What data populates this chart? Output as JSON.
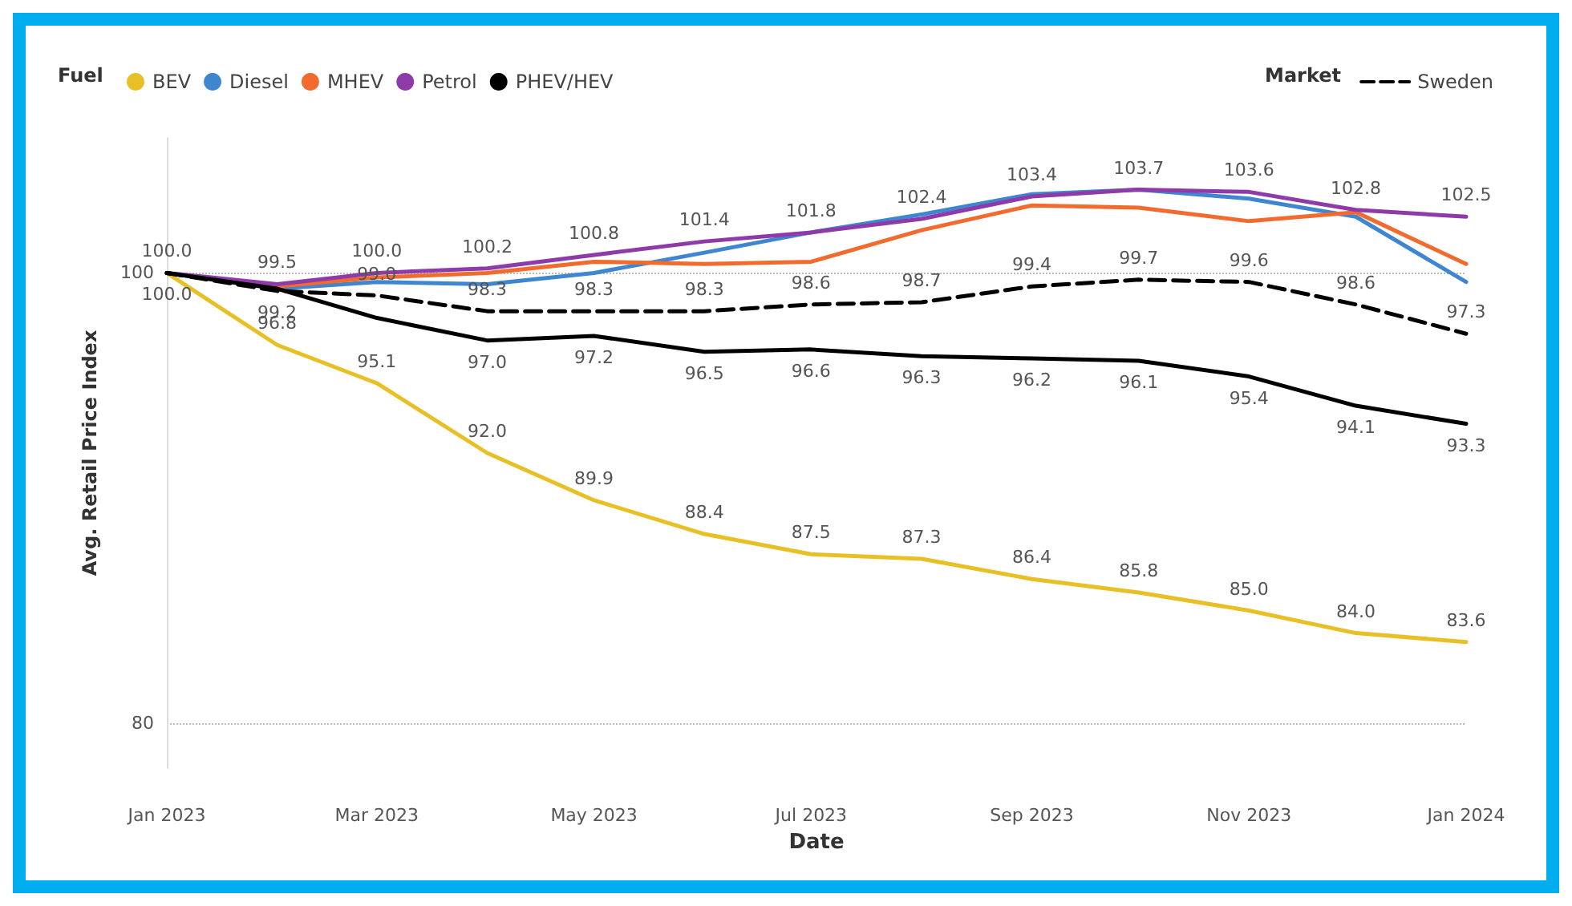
{
  "chart_data": {
    "type": "line",
    "xlabel": "Date",
    "ylabel": "Avg. Retail Price Index",
    "legend_title": "Fuel",
    "annotations": [
      "Market"
    ],
    "x": [
      "2023-01",
      "2023-02",
      "2023-03",
      "2023-04",
      "2023-05",
      "2023-06",
      "2023-07",
      "2023-08",
      "2023-09",
      "2023-10",
      "2023-11",
      "2023-12",
      "2024-01"
    ],
    "xlim": [
      "2023-01",
      "2024-01"
    ],
    "xticks": [
      {
        "value": "2023-01",
        "label": "Jan 2023"
      },
      {
        "value": "2023-03",
        "label": "Mar 2023"
      },
      {
        "value": "2023-05",
        "label": "May 2023"
      },
      {
        "value": "2023-07",
        "label": "Jul 2023"
      },
      {
        "value": "2023-09",
        "label": "Sep 2023"
      },
      {
        "value": "2023-11",
        "label": "Nov 2023"
      },
      {
        "value": "2024-01",
        "label": "Jan 2024"
      }
    ],
    "ylim": [
      78,
      106
    ],
    "yticks": [
      80,
      100
    ],
    "grid": "y",
    "legend": "top",
    "marker": "none",
    "series": [
      {
        "name": "BEV",
        "color": "#e8c026",
        "values": [
          100.0,
          96.8,
          95.1,
          92.0,
          89.9,
          88.4,
          87.5,
          87.3,
          86.4,
          85.8,
          85.0,
          84.0,
          83.6
        ],
        "value_labels": [
          null,
          "96.8",
          "95.1",
          "92.0",
          "89.9",
          "88.4",
          "87.5",
          "87.3",
          "86.4",
          "85.8",
          "85.0",
          "84.0",
          "83.6"
        ]
      },
      {
        "name": "Diesel",
        "color": "#3f86d0",
        "values": [
          100.0,
          99.3,
          99.6,
          99.5,
          100.0,
          100.9,
          101.8,
          102.6,
          103.5,
          103.7,
          103.3,
          102.5,
          99.6
        ]
      },
      {
        "name": "MHEV",
        "color": "#f26b2e",
        "values": [
          100.0,
          99.4,
          99.8,
          100.0,
          100.5,
          100.4,
          100.5,
          101.9,
          103.0,
          102.9,
          102.3,
          102.7,
          100.4
        ]
      },
      {
        "name": "Petrol",
        "color": "#8e3aa8",
        "values": [
          100.0,
          99.5,
          100.0,
          100.2,
          100.8,
          101.4,
          101.8,
          102.4,
          103.4,
          103.7,
          103.6,
          102.8,
          102.5
        ],
        "value_labels": [
          "100.0",
          "99.5",
          "100.0",
          "100.2",
          "100.8",
          "101.4",
          "101.8",
          "102.4",
          "103.4",
          "103.7",
          "103.6",
          "102.8",
          "102.5"
        ]
      },
      {
        "name": "PHEV/HEV",
        "color": "#000000",
        "values": [
          100.0,
          99.3,
          98.0,
          97.0,
          97.2,
          96.5,
          96.6,
          96.3,
          96.2,
          96.1,
          95.4,
          94.1,
          93.3
        ],
        "value_labels": [
          "100.0",
          null,
          null,
          "97.0",
          "97.2",
          "96.5",
          "96.6",
          "96.3",
          "96.2",
          "96.1",
          "95.4",
          "94.1",
          "93.3"
        ]
      },
      {
        "name": "Sweden",
        "color": "#000000",
        "line_style": "dashed",
        "values": [
          100.0,
          99.2,
          99.0,
          98.3,
          98.3,
          98.3,
          98.6,
          98.7,
          99.4,
          99.7,
          99.6,
          98.6,
          97.3
        ],
        "value_labels": [
          null,
          "99.2",
          "99.0",
          "98.3",
          "98.3",
          "98.3",
          "98.6",
          "98.7",
          "99.4",
          "99.7",
          "99.6",
          "98.6",
          "97.3"
        ]
      }
    ]
  }
}
